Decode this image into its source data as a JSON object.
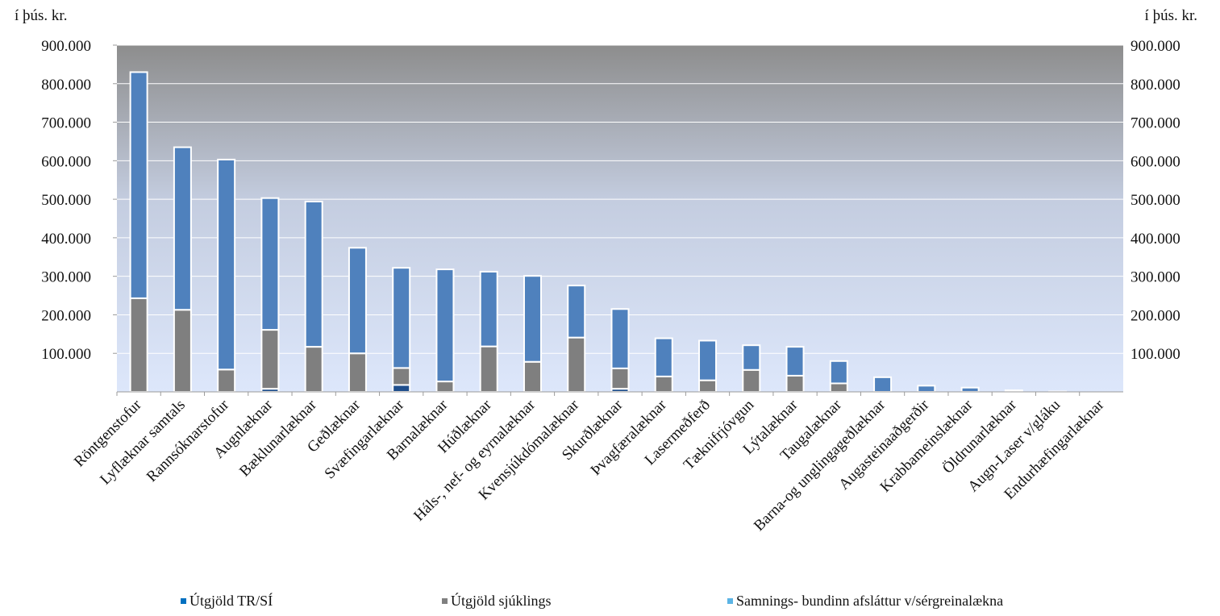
{
  "chart_data": {
    "type": "bar",
    "stacked": true,
    "y_unit_label_left": "í þús. kr.",
    "y_unit_label_right": "í þús. kr.",
    "ylim": [
      0,
      900000
    ],
    "y_ticks": [
      "900.000",
      "800.000",
      "700.000",
      "600.000",
      "500.000",
      "400.000",
      "300.000",
      "200.000",
      "100.000"
    ],
    "y_tick_values": [
      900000,
      800000,
      700000,
      600000,
      500000,
      400000,
      300000,
      200000,
      100000
    ],
    "grid": true,
    "legend_position": "bottom",
    "categories": [
      "Röntgenstofur",
      "Lyflæknar samtals",
      "Rannsóknarstofur",
      "Augnlæknar",
      "Bæklunarlæknar",
      "Geðlæknar",
      "Svæfingarlæknar",
      "Barnalæknar",
      "Húðlæknar",
      "Háls-, nef- og eyrnalæknar",
      "Kvensjúkdómalæknar",
      "Skurðlæknar",
      "Þvagfæralæknar",
      "Lasermeðferð",
      "Tæknifrjóvgun",
      "Lýtalæknar",
      "Taugalæknar",
      "Barna-og unglingageðlæknar",
      "Augasteinaaðgerðir",
      "Krabbameinslæknar",
      "Öldrunarlæknar",
      "Augn-Laser v/gláku",
      "Endurhæfingarlæknar"
    ],
    "series": [
      {
        "name": "Útgjöld TR/SÍ",
        "color": "#1f4e8c",
        "values": [
          0,
          0,
          0,
          8000,
          0,
          0,
          18000,
          0,
          0,
          0,
          0,
          8000,
          0,
          0,
          0,
          0,
          0,
          0,
          0,
          0,
          0,
          0,
          0
        ]
      },
      {
        "name": "Útgjöld sjúklings",
        "color": "#7f7f7f",
        "values": [
          243000,
          213000,
          58000,
          153000,
          117000,
          100000,
          44000,
          27000,
          118000,
          78000,
          141000,
          53000,
          40000,
          30000,
          57000,
          42000,
          22000,
          0,
          0,
          0,
          0,
          0,
          0
        ]
      },
      {
        "name": "Samnings- bundinn afsláttur v/sérgreinalækna",
        "color": "#4f81bd",
        "values": [
          587000,
          422000,
          545000,
          342000,
          377000,
          274000,
          260000,
          291000,
          194000,
          223000,
          135000,
          154000,
          99000,
          103000,
          64000,
          75000,
          58000,
          38000,
          16000,
          11000,
          4000,
          1000,
          0
        ]
      }
    ]
  },
  "legend": [
    {
      "label": "Útgjöld TR/SÍ",
      "color": "#0070c0"
    },
    {
      "label": "Útgjöld sjúklings",
      "color": "#808080"
    },
    {
      "label": "Samnings- bundinn afsláttur v/sérgreinalækna",
      "color": "#5bb4e5"
    }
  ]
}
